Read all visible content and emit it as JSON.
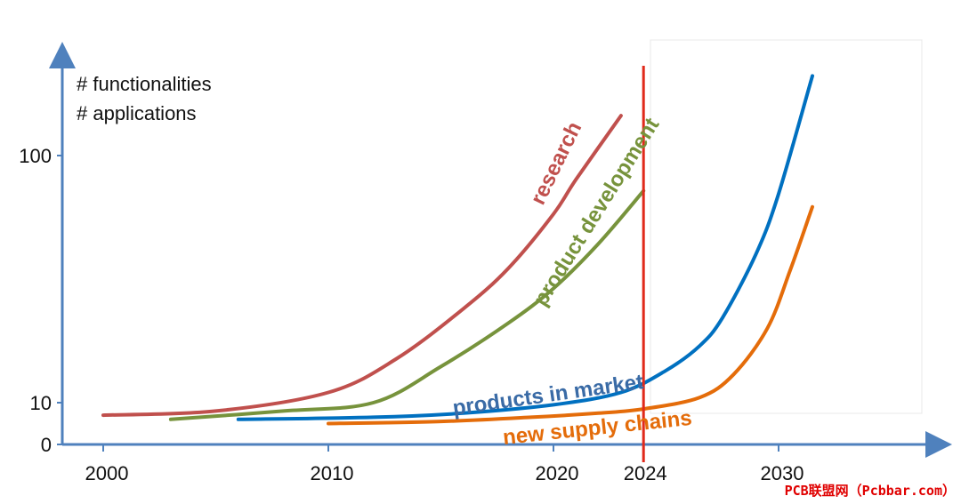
{
  "chart_data": {
    "type": "line",
    "y_annotation": [
      "# functionalities",
      "# applications"
    ],
    "x_ticks": [
      "2000",
      "2010",
      "2020",
      "2024",
      "2030"
    ],
    "y_ticks": [
      "0",
      "10",
      "100"
    ],
    "marker": {
      "x": 2024,
      "label": "2024",
      "color": "#e02a1c"
    },
    "series": [
      {
        "name": "research",
        "color": "#c0504d",
        "points": [
          [
            2000,
            7
          ],
          [
            2005,
            8
          ],
          [
            2010,
            11
          ],
          [
            2013,
            15
          ],
          [
            2016,
            24
          ],
          [
            2018,
            35
          ],
          [
            2020,
            58
          ],
          [
            2021,
            80
          ],
          [
            2023,
            145
          ]
        ]
      },
      {
        "name": "product development",
        "color": "#77933c",
        "points": [
          [
            2003,
            6
          ],
          [
            2008,
            8
          ],
          [
            2012,
            10
          ],
          [
            2015,
            14
          ],
          [
            2018,
            21
          ],
          [
            2020,
            29
          ],
          [
            2022,
            44
          ],
          [
            2024,
            72
          ]
        ]
      },
      {
        "name": "products in market",
        "color": "#0070c0",
        "points": [
          [
            2006,
            6
          ],
          [
            2012,
            6.5
          ],
          [
            2016,
            7.5
          ],
          [
            2020,
            9.5
          ],
          [
            2023,
            11
          ],
          [
            2025,
            13.5
          ],
          [
            2026.5,
            17
          ],
          [
            2027.5,
            22
          ],
          [
            2029,
            40
          ],
          [
            2030,
            70
          ],
          [
            2031.5,
            210
          ]
        ]
      },
      {
        "name": "new supply chains",
        "color": "#e46c0a",
        "points": [
          [
            2010,
            5
          ],
          [
            2015,
            5.5
          ],
          [
            2019,
            6.5
          ],
          [
            2022,
            7.5
          ],
          [
            2024,
            8.5
          ],
          [
            2026.5,
            10.5
          ],
          [
            2028,
            13
          ],
          [
            2029.5,
            20
          ],
          [
            2030.5,
            34
          ],
          [
            2031.5,
            62
          ]
        ]
      }
    ]
  },
  "watermark": {
    "text": "PCB联盟网（Pcbbar.com）",
    "color": "#e00000"
  }
}
